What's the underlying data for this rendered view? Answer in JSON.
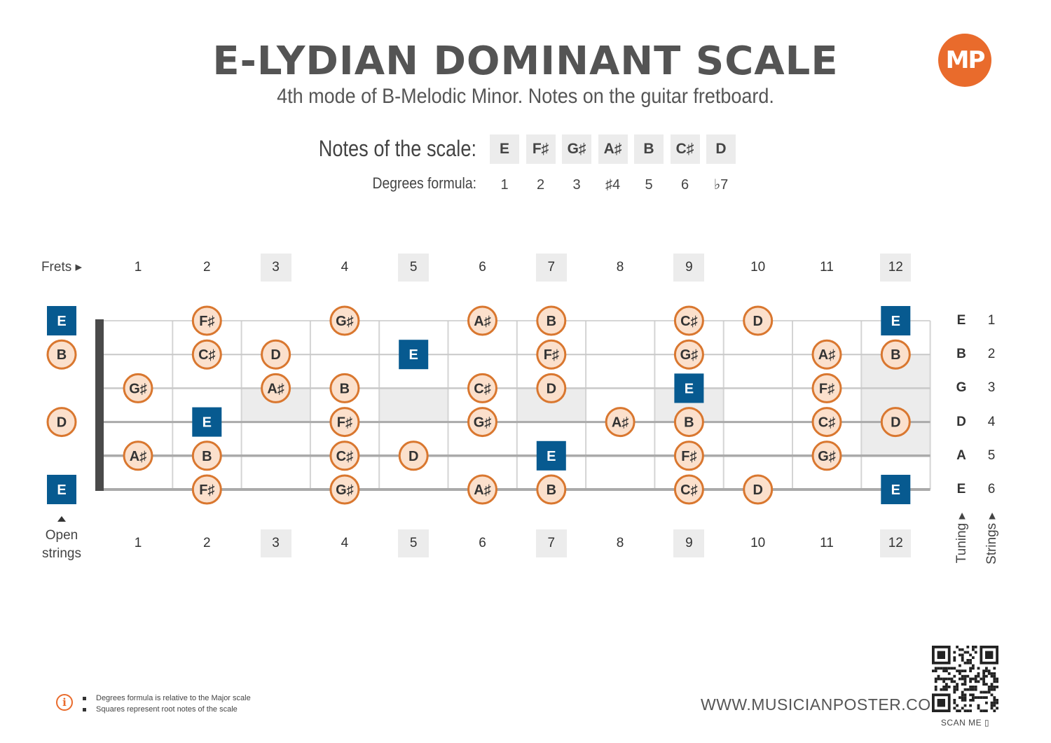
{
  "title": "E-LYDIAN DOMINANT SCALE",
  "subtitle": "4th mode of B-Melodic Minor. Notes on the guitar fretboard.",
  "logo_text": "MP",
  "notes_label": "Notes of the scale:",
  "degrees_label": "Degrees formula:",
  "scale_notes": [
    "E",
    "F♯",
    "G♯",
    "A♯",
    "B",
    "C♯",
    "D"
  ],
  "degrees": [
    "1",
    "2",
    "3",
    "♯4",
    "5",
    "6",
    "♭7"
  ],
  "frets_label": "Frets ▸",
  "fret_numbers": [
    "1",
    "2",
    "3",
    "4",
    "5",
    "6",
    "7",
    "8",
    "9",
    "10",
    "11",
    "12"
  ],
  "marker_frets": [
    3,
    5,
    7,
    9,
    12
  ],
  "open_strings_label": [
    "Open",
    "strings"
  ],
  "tuning_label": "Tuning",
  "strings_label": "Strings",
  "tuning": [
    "E",
    "B",
    "G",
    "D",
    "A",
    "E"
  ],
  "string_numbers": [
    "1",
    "2",
    "3",
    "4",
    "5",
    "6"
  ],
  "fretboard": [
    [
      "E",
      "",
      "F♯",
      "",
      "G♯",
      "",
      "A♯",
      "B",
      "",
      "C♯",
      "D",
      "",
      "E"
    ],
    [
      "B",
      "",
      "C♯",
      "D",
      "",
      "E",
      "",
      "F♯",
      "",
      "G♯",
      "",
      "A♯",
      "B"
    ],
    [
      "",
      "G♯",
      "",
      "A♯",
      "B",
      "",
      "C♯",
      "D",
      "",
      "E",
      "",
      "F♯",
      ""
    ],
    [
      "D",
      "",
      "E",
      "",
      "F♯",
      "",
      "G♯",
      "",
      "A♯",
      "B",
      "",
      "C♯",
      "D"
    ],
    [
      "",
      "A♯",
      "B",
      "",
      "C♯",
      "D",
      "",
      "E",
      "",
      "F♯",
      "",
      "G♯",
      ""
    ],
    [
      "E",
      "",
      "F♯",
      "",
      "G♯",
      "",
      "A♯",
      "B",
      "",
      "C♯",
      "D",
      "",
      "E"
    ]
  ],
  "root_note": "E",
  "colors": {
    "root_fill": "#075a90",
    "note_fill": "#fbe0cc",
    "note_stroke": "#d9772f",
    "accent": "#e96b2c",
    "marker_shade": "#ececec"
  },
  "website": "WWW.MUSICIANPOSTER.COM",
  "scan_me": "SCAN ME",
  "footnotes": [
    "Degrees formula is relative to the Major scale",
    "Squares represent root notes of the scale"
  ],
  "icons": {
    "info": "info-icon",
    "qr": "qr-code-icon",
    "phone": "phone-icon"
  }
}
